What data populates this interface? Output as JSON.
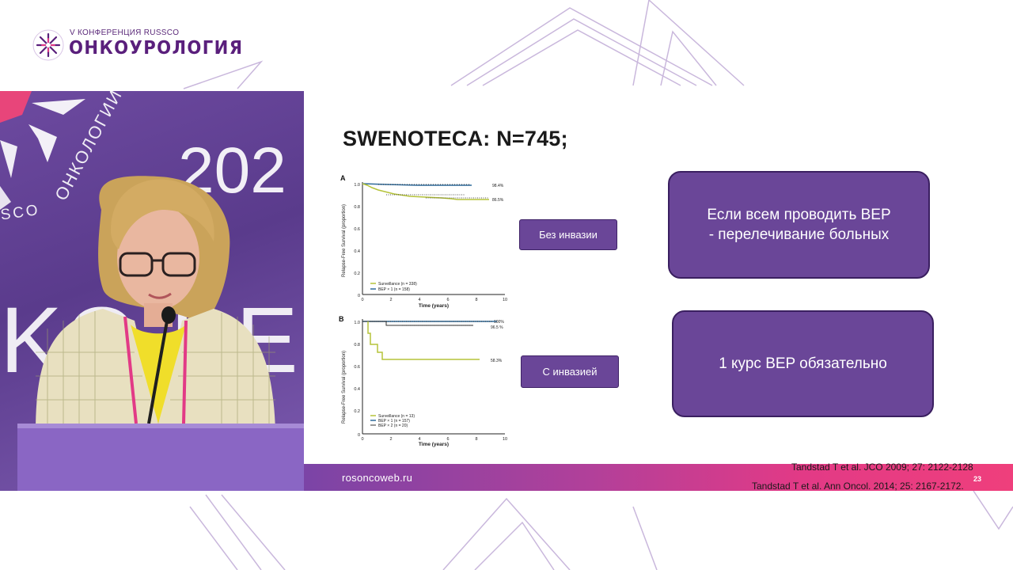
{
  "conference": {
    "subtitle": "V КОНФЕРЕНЦИЯ RUSSCO",
    "title": "ОНКОУРОЛОГИЯ",
    "mark_caption": "russco"
  },
  "backdrop": {
    "year": "202",
    "letters": "KO   PE",
    "arc_text": "ОНКОЛОГИИ",
    "brand": "SCO"
  },
  "slide": {
    "title": "SWENOTECA: N=745;",
    "panel_a": {
      "letter": "A",
      "ylabel": "Relapse-Free Survival (proportion)",
      "xlabel": "Time (years)",
      "y_ticks": [
        "1.0",
        "0.8",
        "0.6",
        "0.4",
        "0.2",
        "0"
      ],
      "x_ticks": [
        "0",
        "2",
        "4",
        "6",
        "8",
        "10"
      ],
      "end_label_top": "98.4%",
      "end_label_bottom": "86.5%",
      "legend": [
        "Surveillance (n = 338)",
        "BEP × 1 (n = 158)"
      ]
    },
    "panel_b": {
      "letter": "B",
      "ylabel": "Relapse-Free Survival (proportion)",
      "xlabel": "Time (years)",
      "y_ticks": [
        "1.0",
        "0.8",
        "0.6",
        "0.4",
        "0.2",
        "0"
      ],
      "x_ticks": [
        "0",
        "2",
        "4",
        "6",
        "8",
        "10"
      ],
      "end_label_top": "100%",
      "end_label_mid": "96.5 %",
      "end_label_low": "58.3%",
      "legend": [
        "Surveillance (n = 13)",
        "BEP × 1 (n = 157)",
        "BEP × 2 (n = 20)"
      ]
    },
    "label_no_invasion": "Без инвазии",
    "label_invasion": "С инвазией",
    "box_top_line1": "Если всем проводить BEP",
    "box_top_line2": "- перелечивание больных",
    "box_bottom": "1 курс BEP обязательно",
    "footer_url": "rosoncoweb.ru",
    "page_number": "23"
  },
  "references": [
    "Tandstad T et al. JCO 2009; 27: 2122-2128",
    "Tandstad T et al. Ann Oncol. 2014; 25: 2167-2172."
  ],
  "colors": {
    "brand_purple": "#5a1f7c",
    "box_purple": "#6a4698",
    "footer_pink": "#e23a86",
    "surveillance_line": "#b5c33a",
    "bep_line": "#2f6a9a"
  }
}
